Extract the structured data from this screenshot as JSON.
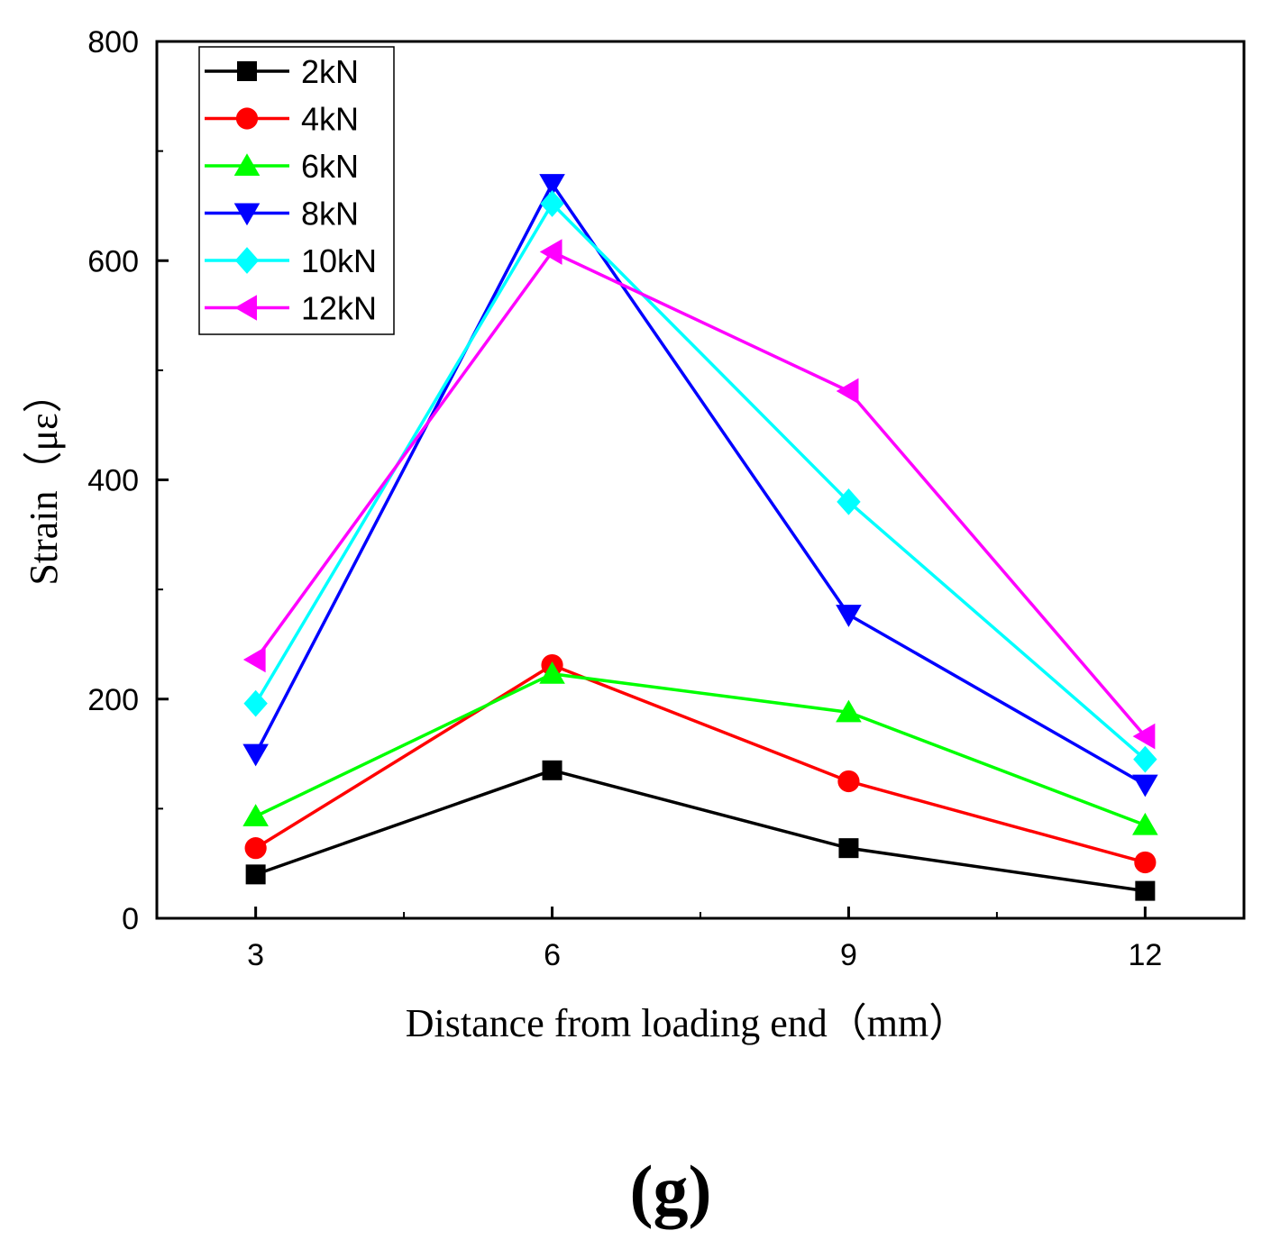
{
  "chart_data": {
    "type": "line",
    "title": "",
    "xlabel": "Distance from loading end（mm）",
    "ylabel": "Strain（με）",
    "x": [
      3,
      6,
      9,
      12
    ],
    "xticks": [
      3,
      6,
      9,
      12
    ],
    "xlim": [
      2,
      13
    ],
    "ylim": [
      0,
      800
    ],
    "yticks": [
      0,
      200,
      400,
      600,
      800
    ],
    "grid": false,
    "legend_position": "top-left",
    "panel_label": "(g)",
    "series": [
      {
        "name": "2kN",
        "color": "#000000",
        "marker": "square",
        "values": [
          40,
          135,
          64,
          25
        ]
      },
      {
        "name": "4kN",
        "color": "#ff0000",
        "marker": "circle",
        "values": [
          64,
          231,
          125,
          51
        ]
      },
      {
        "name": "6kN",
        "color": "#00ff00",
        "marker": "triangle-up",
        "values": [
          93,
          223,
          188,
          85
        ]
      },
      {
        "name": "8kN",
        "color": "#0000ff",
        "marker": "triangle-down",
        "values": [
          150,
          670,
          277,
          122
        ]
      },
      {
        "name": "10kN",
        "color": "#00ffff",
        "marker": "diamond",
        "values": [
          196,
          652,
          380,
          145
        ]
      },
      {
        "name": "12kN",
        "color": "#ff00ff",
        "marker": "triangle-left",
        "values": [
          236,
          608,
          481,
          166
        ]
      }
    ]
  }
}
